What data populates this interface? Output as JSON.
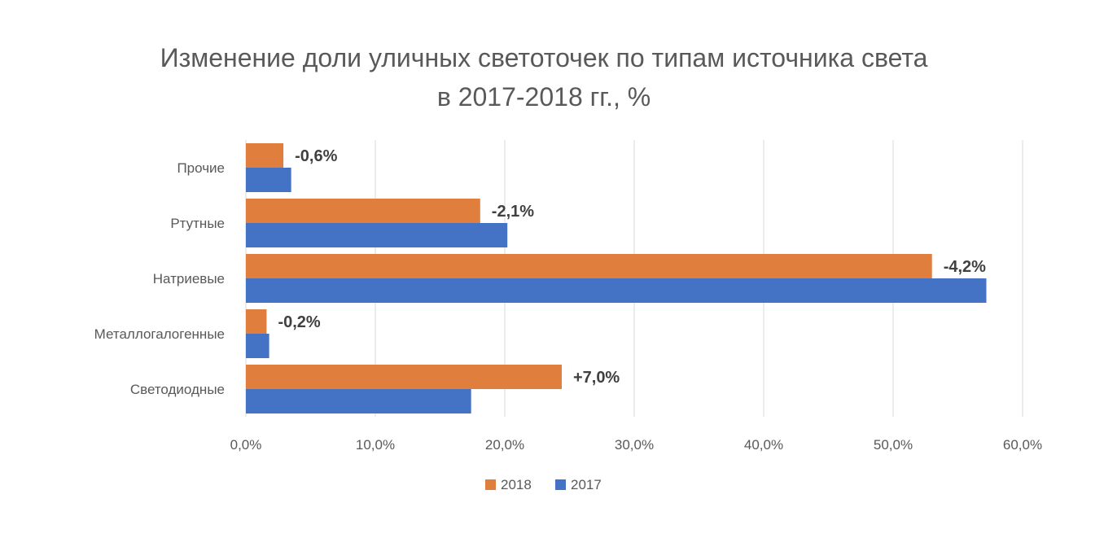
{
  "chart_data": {
    "type": "bar",
    "orientation": "horizontal",
    "title": "Изменение доли уличных светоточек по типам источника света",
    "subtitle": "в 2017-2018 гг., %",
    "categories": [
      "Прочие",
      "Ртутные",
      "Натриевые",
      "Металлогалогенные",
      "Светодиодные"
    ],
    "series": [
      {
        "name": "2018",
        "color": "#E07E3E",
        "values": [
          2.9,
          18.1,
          53.0,
          1.6,
          24.4
        ]
      },
      {
        "name": "2017",
        "color": "#4472C4",
        "values": [
          3.5,
          20.2,
          57.2,
          1.8,
          17.4
        ]
      }
    ],
    "data_labels": [
      "-0,6%",
      "-2,1%",
      "-4,2%",
      "-0,2%",
      "+7,0%"
    ],
    "xlim": [
      0,
      60
    ],
    "x_ticks": [
      "0,0%",
      "10,0%",
      "20,0%",
      "30,0%",
      "40,0%",
      "50,0%",
      "60,0%"
    ],
    "grid": true,
    "legend_position": "bottom"
  }
}
